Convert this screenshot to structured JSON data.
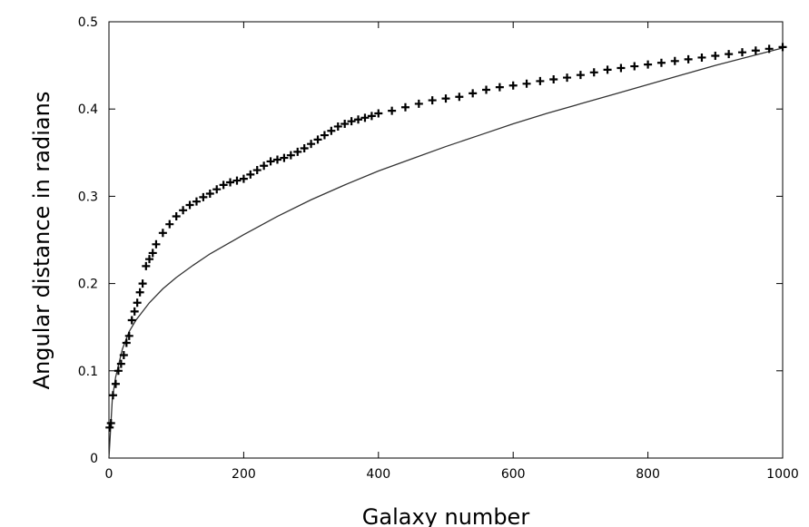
{
  "chart_data": {
    "type": "scatter",
    "title": "",
    "xlabel": "Galaxy number",
    "ylabel": "Angular distance in radians",
    "xlim": [
      0,
      1000
    ],
    "ylim": [
      0,
      0.5
    ],
    "x_ticks": [
      0,
      200,
      400,
      600,
      800,
      1000
    ],
    "y_ticks": [
      0,
      0.1,
      0.2,
      0.3,
      0.4,
      0.5
    ],
    "x_tick_labels": [
      "0",
      "200",
      "400",
      "600",
      "800",
      "1000"
    ],
    "y_tick_labels": [
      "0",
      "0.1",
      "0.2",
      "0.3",
      "0.4",
      "0.5"
    ],
    "grid": false,
    "legend": "none",
    "colors": {
      "points": "#000000",
      "curve": "#333333"
    },
    "series": [
      {
        "type": "scatter",
        "marker": "plus",
        "x": [
          1,
          3,
          6,
          10,
          14,
          18,
          22,
          26,
          30,
          34,
          38,
          42,
          46,
          50,
          55,
          60,
          65,
          70,
          80,
          90,
          100,
          110,
          120,
          130,
          140,
          150,
          160,
          170,
          180,
          190,
          200,
          210,
          220,
          230,
          240,
          250,
          260,
          270,
          280,
          290,
          300,
          310,
          320,
          330,
          340,
          350,
          360,
          370,
          380,
          390,
          400,
          420,
          440,
          460,
          480,
          500,
          520,
          540,
          560,
          580,
          600,
          620,
          640,
          660,
          680,
          700,
          720,
          740,
          760,
          780,
          800,
          820,
          840,
          860,
          880,
          900,
          920,
          940,
          960,
          980,
          1000
        ],
        "y": [
          0.035,
          0.04,
          0.072,
          0.085,
          0.1,
          0.108,
          0.118,
          0.132,
          0.14,
          0.158,
          0.168,
          0.178,
          0.19,
          0.2,
          0.22,
          0.228,
          0.235,
          0.245,
          0.258,
          0.268,
          0.277,
          0.284,
          0.29,
          0.294,
          0.299,
          0.303,
          0.308,
          0.313,
          0.316,
          0.318,
          0.32,
          0.325,
          0.33,
          0.335,
          0.34,
          0.342,
          0.344,
          0.347,
          0.351,
          0.355,
          0.36,
          0.365,
          0.37,
          0.375,
          0.38,
          0.383,
          0.386,
          0.388,
          0.39,
          0.392,
          0.395,
          0.398,
          0.402,
          0.406,
          0.41,
          0.412,
          0.414,
          0.418,
          0.422,
          0.425,
          0.427,
          0.429,
          0.432,
          0.434,
          0.436,
          0.439,
          0.442,
          0.445,
          0.447,
          0.449,
          0.451,
          0.453,
          0.455,
          0.457,
          0.459,
          0.461,
          0.463,
          0.465,
          0.467,
          0.469,
          0.471
        ]
      },
      {
        "type": "line",
        "x": [
          0,
          5,
          10,
          20,
          30,
          40,
          50,
          60,
          80,
          100,
          125,
          150,
          175,
          200,
          250,
          300,
          350,
          400,
          450,
          500,
          550,
          600,
          650,
          700,
          750,
          800,
          850,
          900,
          950,
          1000
        ],
        "y": [
          0,
          0.068,
          0.093,
          0.125,
          0.145,
          0.158,
          0.168,
          0.178,
          0.194,
          0.207,
          0.221,
          0.234,
          0.245,
          0.256,
          0.277,
          0.296,
          0.313,
          0.329,
          0.343,
          0.357,
          0.37,
          0.383,
          0.395,
          0.406,
          0.417,
          0.428,
          0.439,
          0.45,
          0.46,
          0.47
        ]
      }
    ]
  }
}
